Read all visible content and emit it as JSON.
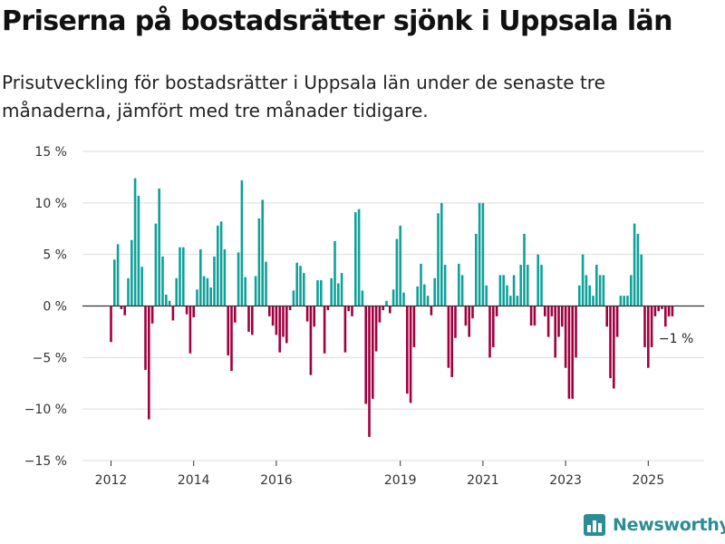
{
  "title": "Priserna på bostadsrätter sjönk i Uppsala län",
  "subtitle": "Prisutveckling för bostadsrätter i Uppsala län under de senaste tre månaderna, jämfört med tre månader tidigare.",
  "brand": {
    "name": "Newsworthy",
    "icon": "newsworthy-logo-icon"
  },
  "colors": {
    "positive": "#0fa19a",
    "negative": "#a1003f",
    "grid": "#dedede",
    "axis": "#333333",
    "brand": "#2c8c96"
  },
  "chart_data": {
    "type": "bar",
    "title": "Priserna på bostadsrätter sjönk i Uppsala län",
    "subtitle": "Prisutveckling för bostadsrätter i Uppsala län under de senaste tre månaderna, jämfört med tre månader tidigare.",
    "xlabel": "",
    "ylabel": "",
    "x_start": "2012-01",
    "frequency": "monthly",
    "ylim": [
      -15,
      15
    ],
    "yticks": [
      15,
      10,
      5,
      0,
      -5,
      -10,
      -15
    ],
    "ytick_labels": [
      "15 %",
      "10 %",
      "5 %",
      "0 %",
      "−5 %",
      "−10 %",
      "−15 %"
    ],
    "xticks": [
      {
        "label": "2012",
        "date": "2012-01"
      },
      {
        "label": "2014",
        "date": "2014-01"
      },
      {
        "label": "2016",
        "date": "2016-01"
      },
      {
        "label": "2019",
        "date": "2019-01"
      },
      {
        "label": "2021",
        "date": "2021-01"
      },
      {
        "label": "2023",
        "date": "2023-01"
      },
      {
        "label": "2025",
        "date": "2025-01"
      }
    ],
    "grid": true,
    "color_positive": "#0fa19a",
    "color_negative": "#a1003f",
    "values": [
      -3.5,
      4.5,
      6.0,
      -0.3,
      -0.9,
      2.7,
      6.4,
      12.4,
      10.7,
      3.8,
      -6.2,
      -11.0,
      -1.7,
      8.0,
      11.4,
      4.8,
      1.1,
      0.5,
      -1.4,
      2.7,
      5.7,
      5.7,
      -0.8,
      -4.6,
      -1.1,
      1.6,
      5.5,
      2.9,
      2.7,
      1.8,
      4.8,
      7.8,
      8.2,
      5.5,
      -4.8,
      -6.3,
      -1.6,
      5.2,
      12.2,
      2.8,
      -2.5,
      -2.8,
      2.9,
      8.5,
      10.3,
      4.3,
      -1.0,
      -1.9,
      -2.8,
      -4.5,
      -3.0,
      -3.6,
      -0.4,
      1.5,
      4.2,
      3.9,
      3.2,
      -1.5,
      -6.7,
      -2.0,
      2.5,
      2.5,
      -4.6,
      -0.4,
      2.7,
      6.3,
      2.2,
      3.2,
      -4.5,
      -0.5,
      -1.0,
      9.1,
      9.4,
      1.5,
      -9.5,
      -12.7,
      -9.0,
      -4.4,
      -1.6,
      -0.4,
      0.5,
      -0.7,
      1.6,
      6.5,
      7.8,
      1.3,
      -8.5,
      -9.4,
      -4.0,
      1.9,
      4.1,
      2.1,
      1.0,
      -0.9,
      2.7,
      9.0,
      10.0,
      4.0,
      -6.0,
      -6.9,
      -3.1,
      4.1,
      3.0,
      -1.9,
      -3.0,
      -1.2,
      7.0,
      10.0,
      10.0,
      2.0,
      -5.0,
      -4.0,
      -1.0,
      3.0,
      3.0,
      2.0,
      1.0,
      3.0,
      1.0,
      4.0,
      7.0,
      4.0,
      -1.9,
      -1.9,
      5.0,
      4.0,
      -1.0,
      -3.0,
      -1.0,
      -5.0,
      -3.0,
      -2.0,
      -6.0,
      -9.0,
      -9.0,
      -5.0,
      2.0,
      5.0,
      3.0,
      2.0,
      1.0,
      4.0,
      3.0,
      3.0,
      -2.0,
      -7.0,
      -8.0,
      -3.0,
      1.0,
      1.0,
      1.0,
      3.0,
      8.0,
      7.0,
      5.0,
      -4.0,
      -6.0,
      -4.0,
      -1.0,
      -0.5,
      -0.3,
      -2.0,
      -1.0,
      -1.0
    ],
    "annotations": [
      {
        "date": "2025-08",
        "value": -1.0,
        "text": "−1 %"
      }
    ]
  }
}
